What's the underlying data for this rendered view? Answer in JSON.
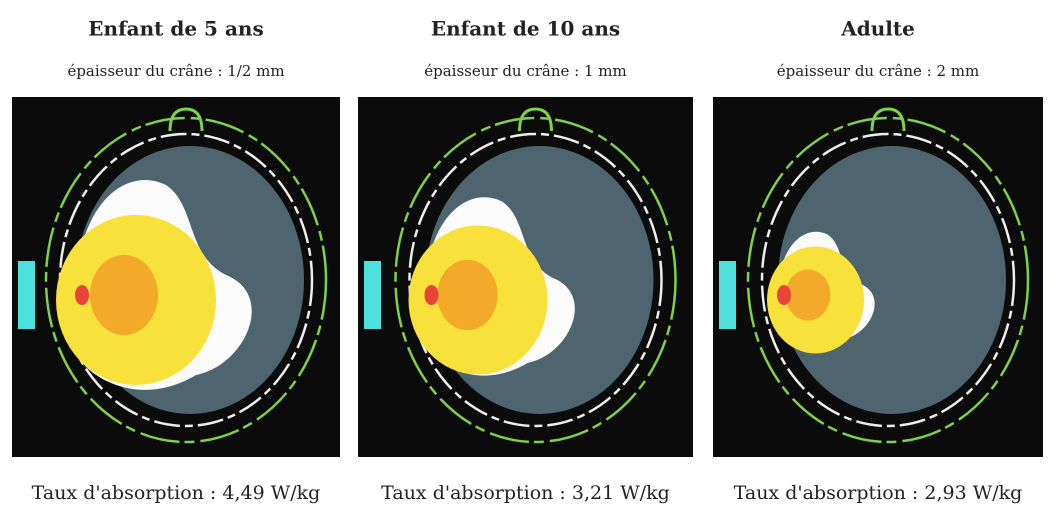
{
  "panels": [
    {
      "title": "Enfant de 5 ans",
      "subtitle": "épaisseur du crâne : 1/2 mm",
      "caption": "Taux d'absorption : 4,49 W/kg"
    },
    {
      "title": "Enfant de 10 ans",
      "subtitle": "épaisseur du crâne : 1 mm",
      "caption": "Taux d'absorption : 3,21 W/kg"
    },
    {
      "title": "Adulte",
      "subtitle": "épaisseur du crâne : 2 mm",
      "caption": "Taux d'absorption : 2,93 W/kg"
    }
  ]
}
